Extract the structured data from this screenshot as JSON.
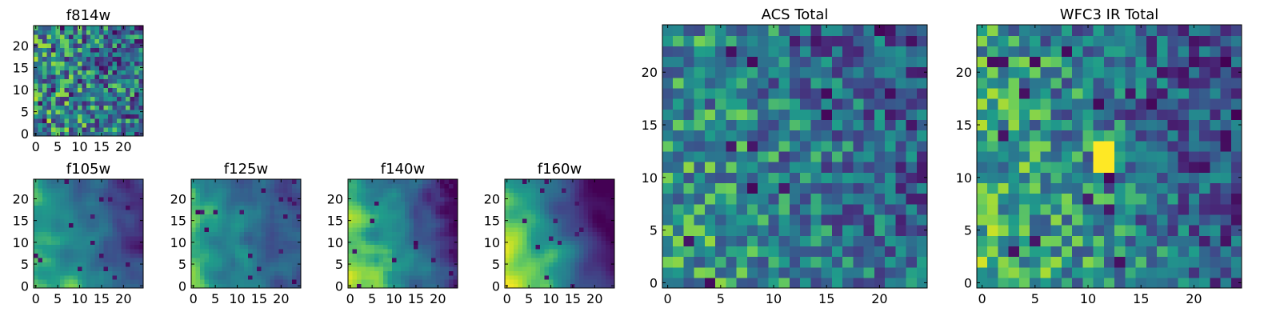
{
  "chart_data": [
    {
      "id": "f814w",
      "type": "heatmap",
      "title": "f814w",
      "colormap": "viridis",
      "grid_size": 25,
      "xlim": [
        -0.5,
        24.5
      ],
      "ylim": [
        -0.5,
        24.5
      ],
      "xticks": [
        0,
        5,
        10,
        15,
        20
      ],
      "yticks": [
        0,
        5,
        10,
        15,
        20
      ],
      "xtick_labels": [
        "0",
        "5",
        "10",
        "15",
        "20"
      ],
      "ytick_labels": [
        "0",
        "5",
        "10",
        "15",
        "20"
      ],
      "texture": {
        "seed": 11,
        "gradient": 0.25,
        "smooth": 0,
        "noise": 0.7,
        "darkspots": 0.03
      }
    },
    {
      "id": "f105w",
      "type": "heatmap",
      "title": "f105w",
      "colormap": "viridis",
      "grid_size": 25,
      "xlim": [
        -0.5,
        24.5
      ],
      "ylim": [
        -0.5,
        24.5
      ],
      "xticks": [
        0,
        5,
        10,
        15,
        20
      ],
      "yticks": [
        0,
        5,
        10,
        15,
        20
      ],
      "xtick_labels": [
        "0",
        "5",
        "10",
        "15",
        "20"
      ],
      "ytick_labels": [
        "0",
        "5",
        "10",
        "15",
        "20"
      ],
      "texture": {
        "seed": 22,
        "gradient": 0.9,
        "smooth": 2,
        "noise": 0.35,
        "darkspots": 0.02
      }
    },
    {
      "id": "f125w",
      "type": "heatmap",
      "title": "f125w",
      "colormap": "viridis",
      "grid_size": 25,
      "xlim": [
        -0.5,
        24.5
      ],
      "ylim": [
        -0.5,
        24.5
      ],
      "xticks": [
        0,
        5,
        10,
        15,
        20
      ],
      "yticks": [
        0,
        5,
        10,
        15,
        20
      ],
      "xtick_labels": [
        "0",
        "5",
        "10",
        "15",
        "20"
      ],
      "ytick_labels": [
        "0",
        "5",
        "10",
        "15",
        "20"
      ],
      "texture": {
        "seed": 33,
        "gradient": 0.7,
        "smooth": 2,
        "noise": 0.35,
        "darkspots": 0.02
      }
    },
    {
      "id": "f140w",
      "type": "heatmap",
      "title": "f140w",
      "colormap": "viridis",
      "grid_size": 25,
      "xlim": [
        -0.5,
        24.5
      ],
      "ylim": [
        -0.5,
        24.5
      ],
      "xticks": [
        0,
        5,
        10,
        15,
        20
      ],
      "yticks": [
        0,
        5,
        10,
        15,
        20
      ],
      "xtick_labels": [
        "0",
        "5",
        "10",
        "15",
        "20"
      ],
      "ytick_labels": [
        "0",
        "5",
        "10",
        "15",
        "20"
      ],
      "texture": {
        "seed": 44,
        "gradient": 1.1,
        "smooth": 2,
        "noise": 0.35,
        "darkspots": 0.03
      }
    },
    {
      "id": "f160w",
      "type": "heatmap",
      "title": "f160w",
      "colormap": "viridis",
      "grid_size": 25,
      "xlim": [
        -0.5,
        24.5
      ],
      "ylim": [
        -0.5,
        24.5
      ],
      "xticks": [
        0,
        5,
        10,
        15,
        20
      ],
      "yticks": [
        0,
        5,
        10,
        15,
        20
      ],
      "xtick_labels": [
        "0",
        "5",
        "10",
        "15",
        "20"
      ],
      "ytick_labels": [
        "0",
        "5",
        "10",
        "15",
        "20"
      ],
      "texture": {
        "seed": 55,
        "gradient": 1.3,
        "smooth": 3,
        "noise": 0.3,
        "darkspots": 0.02
      }
    },
    {
      "id": "acs-total",
      "type": "heatmap",
      "title": "ACS Total",
      "colormap": "viridis",
      "grid_size": 25,
      "xlim": [
        -0.5,
        24.5
      ],
      "ylim": [
        -0.5,
        24.5
      ],
      "xticks": [
        0,
        5,
        10,
        15,
        20
      ],
      "yticks": [
        0,
        5,
        10,
        15,
        20
      ],
      "xtick_labels": [
        "0",
        "5",
        "10",
        "15",
        "20"
      ],
      "ytick_labels": [
        "0",
        "5",
        "10",
        "15",
        "20"
      ],
      "texture": {
        "seed": 66,
        "gradient": 0.35,
        "smooth": 0,
        "noise": 0.55,
        "darkspots": 0.025
      }
    },
    {
      "id": "wfc3-ir-total",
      "type": "heatmap",
      "title": "WFC3 IR Total",
      "colormap": "viridis",
      "grid_size": 25,
      "xlim": [
        -0.5,
        24.5
      ],
      "ylim": [
        -0.5,
        24.5
      ],
      "xticks": [
        0,
        5,
        10,
        15,
        20
      ],
      "yticks": [
        0,
        5,
        10,
        15,
        20
      ],
      "xtick_labels": [
        "0",
        "5",
        "10",
        "15",
        "20"
      ],
      "ytick_labels": [
        "0",
        "5",
        "10",
        "15",
        "20"
      ],
      "texture": {
        "seed": 77,
        "gradient": 0.6,
        "smooth": 0,
        "noise": 0.55,
        "darkspots": 0.03,
        "bright_block": [
          11,
          11,
          12,
          13
        ]
      }
    }
  ]
}
